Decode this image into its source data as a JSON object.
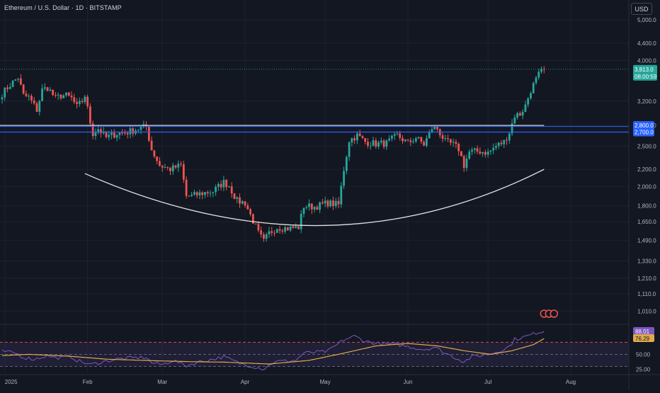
{
  "header": {
    "title": "Ethereum / U.S. Dollar · 1D · BITSTAMP",
    "currency_button": "USD"
  },
  "colors": {
    "background": "#131722",
    "up": "#26a69a",
    "down": "#ef5350",
    "level_line_upper": "#d1d4dc",
    "level_line_lower": "#2962ff",
    "rsi_line": "#7e57c2",
    "rsi_ma": "#e0a94a",
    "curve": "#e0e0e0"
  },
  "chart_data": [
    {
      "type": "candlestick",
      "scale": "log",
      "ylim": [
        950,
        5200
      ],
      "y_ticks": [
        "5,000.0",
        "4,400.0",
        "4,000.0",
        "3,200.0",
        "2,800.0",
        "2,500.0",
        "2,200.0",
        "2,000.0",
        "1,800.0",
        "1,650.0",
        "1,490.0",
        "1,330.0",
        "1,210.0",
        "1,110.0",
        "1,010.0"
      ],
      "x_ticks": [
        "2025",
        "Feb",
        "Mar",
        "Apr",
        "May",
        "Jun",
        "Jul",
        "Aug"
      ],
      "last_price_label": "3,813.0",
      "countdown_label": "08:00:59",
      "levels": [
        {
          "price": 2800,
          "label": "2,800.0"
        },
        {
          "price": 2700,
          "label": "2,700.0"
        }
      ],
      "anchors": [
        [
          "2024-12-31",
          3333
        ],
        [
          "2025-01-02",
          3450
        ],
        [
          "2025-01-06",
          3650
        ],
        [
          "2025-01-08",
          3300
        ],
        [
          "2025-01-10",
          3270
        ],
        [
          "2025-01-13",
          3050
        ],
        [
          "2025-01-15",
          3400
        ],
        [
          "2025-01-17",
          3450
        ],
        [
          "2025-01-20",
          3250
        ],
        [
          "2025-01-22",
          3300
        ],
        [
          "2025-01-24",
          3300
        ],
        [
          "2025-01-26",
          3250
        ],
        [
          "2025-01-28",
          3100
        ],
        [
          "2025-01-30",
          3200
        ],
        [
          "2025-01-31",
          3300
        ],
        [
          "2025-02-02",
          2850
        ],
        [
          "2025-02-03",
          2680
        ],
        [
          "2025-02-05",
          2750
        ],
        [
          "2025-02-08",
          2620
        ],
        [
          "2025-02-12",
          2680
        ],
        [
          "2025-02-16",
          2700
        ],
        [
          "2025-02-20",
          2750
        ],
        [
          "2025-02-23",
          2780
        ],
        [
          "2025-02-25",
          2450
        ],
        [
          "2025-02-28",
          2250
        ],
        [
          "2025-03-04",
          2200
        ],
        [
          "2025-03-08",
          2250
        ],
        [
          "2025-03-10",
          1900
        ],
        [
          "2025-03-12",
          1900
        ],
        [
          "2025-03-16",
          1930
        ],
        [
          "2025-03-20",
          1950
        ],
        [
          "2025-03-24",
          2050
        ],
        [
          "2025-03-26",
          2010
        ],
        [
          "2025-03-29",
          1850
        ],
        [
          "2025-04-01",
          1830
        ],
        [
          "2025-04-06",
          1550
        ],
        [
          "2025-04-08",
          1480
        ],
        [
          "2025-04-10",
          1550
        ],
        [
          "2025-04-13",
          1600
        ],
        [
          "2025-04-17",
          1590
        ],
        [
          "2025-04-21",
          1600
        ],
        [
          "2025-04-23",
          1800
        ],
        [
          "2025-04-27",
          1790
        ],
        [
          "2025-05-02",
          1830
        ],
        [
          "2025-05-06",
          1810
        ],
        [
          "2025-05-08",
          2200
        ],
        [
          "2025-05-10",
          2580
        ],
        [
          "2025-05-13",
          2650
        ],
        [
          "2025-05-16",
          2560
        ],
        [
          "2025-05-20",
          2530
        ],
        [
          "2025-05-24",
          2540
        ],
        [
          "2025-05-28",
          2650
        ],
        [
          "2025-06-01",
          2540
        ],
        [
          "2025-06-04",
          2620
        ],
        [
          "2025-06-07",
          2520
        ],
        [
          "2025-06-10",
          2760
        ],
        [
          "2025-06-12",
          2750
        ],
        [
          "2025-06-15",
          2560
        ],
        [
          "2025-06-18",
          2520
        ],
        [
          "2025-06-20",
          2460
        ],
        [
          "2025-06-22",
          2250
        ],
        [
          "2025-06-24",
          2420
        ],
        [
          "2025-06-28",
          2430
        ],
        [
          "2025-07-01",
          2410
        ],
        [
          "2025-07-04",
          2500
        ],
        [
          "2025-07-07",
          2560
        ],
        [
          "2025-07-09",
          2700
        ],
        [
          "2025-07-11",
          2960
        ],
        [
          "2025-07-13",
          2980
        ],
        [
          "2025-07-15",
          3120
        ],
        [
          "2025-07-17",
          3400
        ],
        [
          "2025-07-20",
          3700
        ],
        [
          "2025-07-22",
          3813
        ]
      ]
    },
    {
      "type": "line",
      "name": "RSI",
      "ylim": [
        20,
        95
      ],
      "y_ticks": [
        "50.00",
        "25.00"
      ],
      "bands": [
        70,
        50,
        30
      ],
      "value_label": "88.01",
      "ma_label": "76.29",
      "anchors": [
        [
          "2024-12-31",
          55
        ],
        [
          "2025-01-05",
          52
        ],
        [
          "2025-01-08",
          45
        ],
        [
          "2025-01-12",
          42
        ],
        [
          "2025-01-17",
          48
        ],
        [
          "2025-01-20",
          44
        ],
        [
          "2025-01-26",
          46
        ],
        [
          "2025-01-28",
          40
        ],
        [
          "2025-02-02",
          33
        ],
        [
          "2025-02-07",
          38
        ],
        [
          "2025-02-12",
          42
        ],
        [
          "2025-02-17",
          44
        ],
        [
          "2025-02-23",
          45
        ],
        [
          "2025-02-25",
          36
        ],
        [
          "2025-03-01",
          33
        ],
        [
          "2025-03-05",
          40
        ],
        [
          "2025-03-10",
          31
        ],
        [
          "2025-03-15",
          38
        ],
        [
          "2025-03-20",
          42
        ],
        [
          "2025-03-24",
          46
        ],
        [
          "2025-03-30",
          35
        ],
        [
          "2025-04-08",
          26
        ],
        [
          "2025-04-12",
          38
        ],
        [
          "2025-04-20",
          40
        ],
        [
          "2025-04-23",
          52
        ],
        [
          "2025-05-02",
          55
        ],
        [
          "2025-05-08",
          74
        ],
        [
          "2025-05-12",
          80
        ],
        [
          "2025-05-16",
          72
        ],
        [
          "2025-05-20",
          68
        ],
        [
          "2025-05-28",
          66
        ],
        [
          "2025-06-02",
          62
        ],
        [
          "2025-06-07",
          58
        ],
        [
          "2025-06-11",
          62
        ],
        [
          "2025-06-15",
          52
        ],
        [
          "2025-06-22",
          38
        ],
        [
          "2025-06-25",
          46
        ],
        [
          "2025-07-01",
          50
        ],
        [
          "2025-07-05",
          55
        ],
        [
          "2025-07-09",
          63
        ],
        [
          "2025-07-11",
          75
        ],
        [
          "2025-07-14",
          78
        ],
        [
          "2025-07-17",
          82
        ],
        [
          "2025-07-20",
          87
        ],
        [
          "2025-07-22",
          88
        ]
      ],
      "ma_anchors": [
        [
          "2024-12-31",
          48
        ],
        [
          "2025-01-10",
          50
        ],
        [
          "2025-01-25",
          47
        ],
        [
          "2025-02-08",
          42
        ],
        [
          "2025-02-22",
          40
        ],
        [
          "2025-03-10",
          38
        ],
        [
          "2025-03-25",
          37
        ],
        [
          "2025-04-10",
          34
        ],
        [
          "2025-04-25",
          40
        ],
        [
          "2025-05-08",
          52
        ],
        [
          "2025-05-20",
          64
        ],
        [
          "2025-06-01",
          68
        ],
        [
          "2025-06-12",
          64
        ],
        [
          "2025-06-22",
          56
        ],
        [
          "2025-07-02",
          50
        ],
        [
          "2025-07-10",
          56
        ],
        [
          "2025-07-18",
          66
        ],
        [
          "2025-07-22",
          76
        ]
      ]
    }
  ]
}
